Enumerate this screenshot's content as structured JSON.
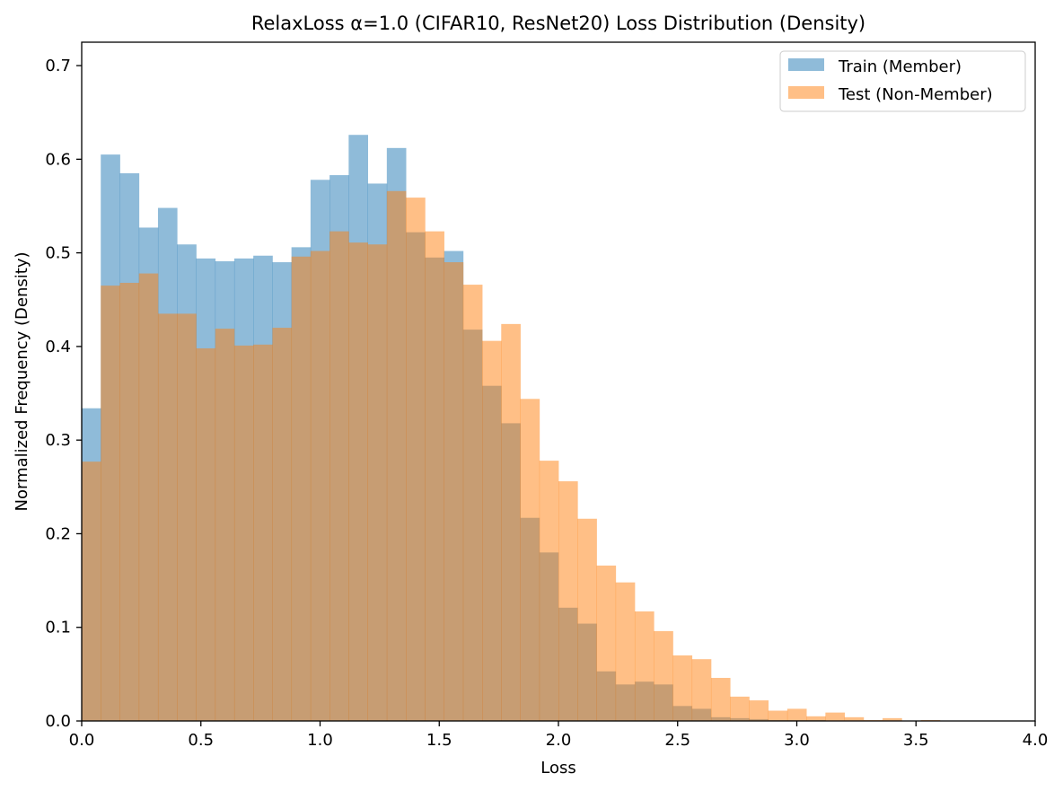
{
  "chart_data": {
    "type": "bar",
    "title": "RelaxLoss α=1.0 (CIFAR10, ResNet20) Loss Distribution (Density)",
    "xlabel": "Loss",
    "ylabel": "Normalized Frequency (Density)",
    "xlim": [
      0.0,
      4.0
    ],
    "ylim": [
      0.0,
      0.725
    ],
    "xticks": [
      0.0,
      0.5,
      1.0,
      1.5,
      2.0,
      2.5,
      3.0,
      3.5,
      4.0
    ],
    "xtick_labels": [
      "0.0",
      "0.5",
      "1.0",
      "1.5",
      "2.0",
      "2.5",
      "3.0",
      "3.5",
      "4.0"
    ],
    "yticks": [
      0.0,
      0.1,
      0.2,
      0.3,
      0.4,
      0.5,
      0.6,
      0.7
    ],
    "ytick_labels": [
      "0.0",
      "0.1",
      "0.2",
      "0.3",
      "0.4",
      "0.5",
      "0.6",
      "0.7"
    ],
    "grid": false,
    "legend_position": "top-right",
    "bin_width": 0.08,
    "series": [
      {
        "name": "Train (Member)",
        "color": "#1f77b4",
        "alpha": 0.5,
        "bin_starts": [
          0.0,
          0.08,
          0.16,
          0.24,
          0.32,
          0.4,
          0.48,
          0.56,
          0.64,
          0.72,
          0.8,
          0.88,
          0.96,
          1.04,
          1.12,
          1.2,
          1.28,
          1.36,
          1.44,
          1.52,
          1.6,
          1.68,
          1.76,
          1.84,
          1.92,
          2.0,
          2.08,
          2.16,
          2.24,
          2.32,
          2.4,
          2.48,
          2.56,
          2.64,
          2.72,
          2.8,
          2.88,
          2.96,
          3.04
        ],
        "values": [
          0.334,
          0.605,
          0.585,
          0.527,
          0.548,
          0.509,
          0.494,
          0.491,
          0.494,
          0.497,
          0.49,
          0.506,
          0.578,
          0.583,
          0.626,
          0.574,
          0.612,
          0.522,
          0.495,
          0.502,
          0.418,
          0.358,
          0.318,
          0.217,
          0.18,
          0.121,
          0.104,
          0.053,
          0.039,
          0.042,
          0.039,
          0.016,
          0.013,
          0.004,
          0.003,
          0.002,
          0.001,
          0.001,
          0.001
        ]
      },
      {
        "name": "Test (Non-Member)",
        "color": "#ff7f0e",
        "alpha": 0.5,
        "bin_starts": [
          0.0,
          0.08,
          0.16,
          0.24,
          0.32,
          0.4,
          0.48,
          0.56,
          0.64,
          0.72,
          0.8,
          0.88,
          0.96,
          1.04,
          1.12,
          1.2,
          1.28,
          1.36,
          1.44,
          1.52,
          1.6,
          1.68,
          1.76,
          1.84,
          1.92,
          2.0,
          2.08,
          2.16,
          2.24,
          2.32,
          2.4,
          2.48,
          2.56,
          2.64,
          2.72,
          2.8,
          2.88,
          2.96,
          3.04,
          3.12,
          3.2,
          3.28,
          3.36,
          3.44,
          3.52
        ],
        "values": [
          0.277,
          0.465,
          0.468,
          0.478,
          0.435,
          0.435,
          0.398,
          0.419,
          0.401,
          0.402,
          0.42,
          0.496,
          0.502,
          0.523,
          0.511,
          0.509,
          0.566,
          0.559,
          0.523,
          0.49,
          0.466,
          0.406,
          0.424,
          0.344,
          0.278,
          0.256,
          0.216,
          0.166,
          0.148,
          0.117,
          0.096,
          0.07,
          0.066,
          0.046,
          0.026,
          0.022,
          0.011,
          0.013,
          0.005,
          0.009,
          0.004,
          0.001,
          0.003,
          0.0,
          0.001
        ]
      }
    ]
  }
}
